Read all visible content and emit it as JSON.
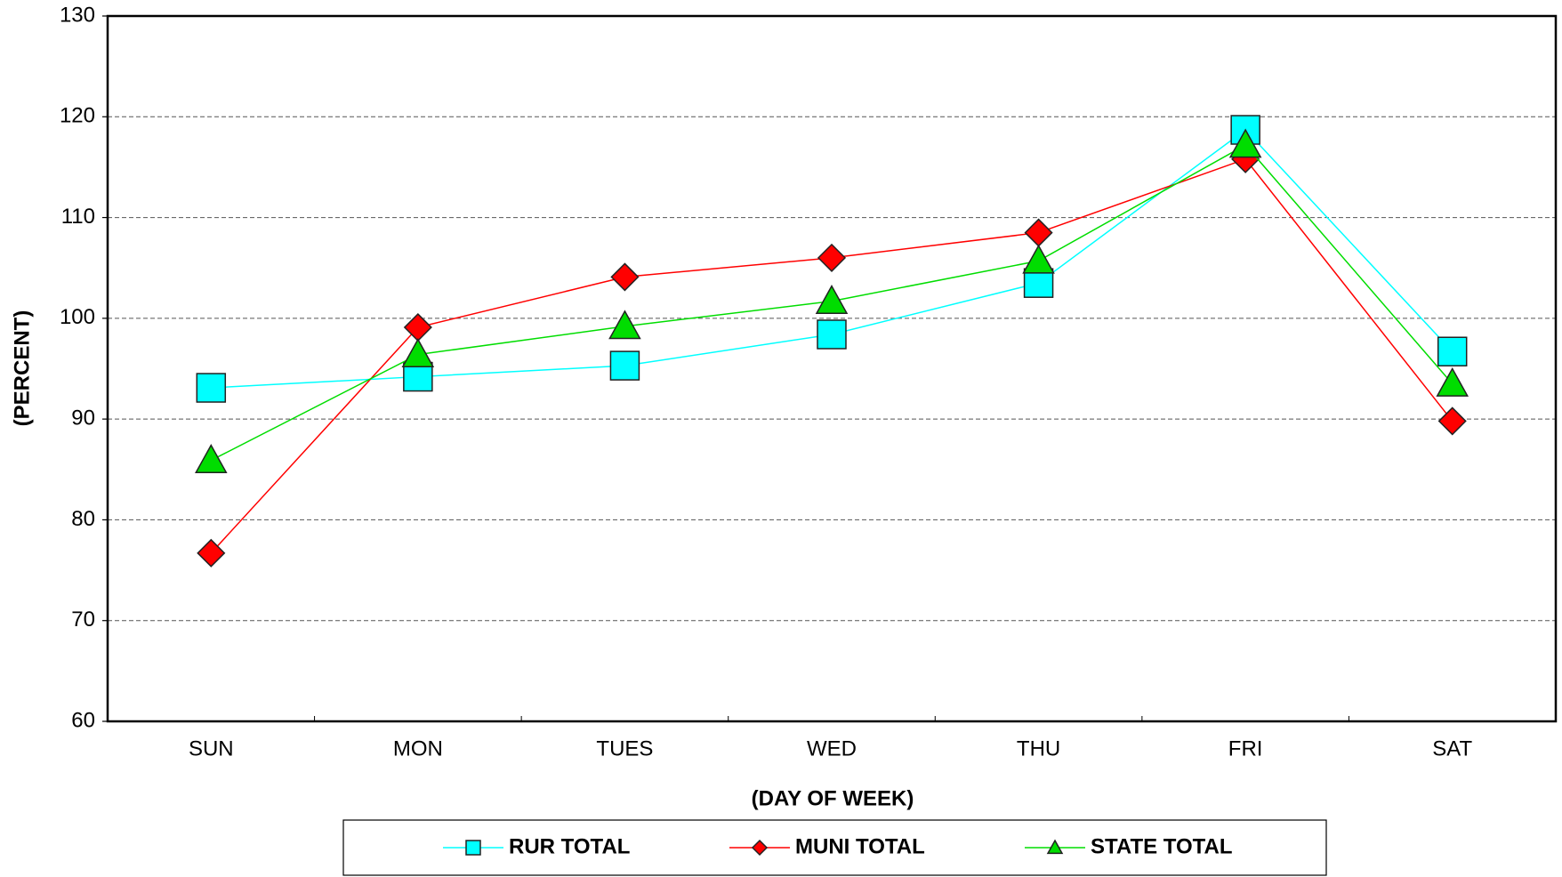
{
  "chart_data": {
    "type": "line",
    "x_label": "(DAY OF WEEK)",
    "y_label": "(PERCENT)",
    "categories": [
      "SUN",
      "MON",
      "TUES",
      "WED",
      "THU",
      "FRI",
      "SAT"
    ],
    "series": [
      {
        "name": "RUR TOTAL",
        "color": "#00ffff",
        "marker": "square",
        "values": [
          93.1,
          94.2,
          95.3,
          98.4,
          103.5,
          118.7,
          96.7
        ]
      },
      {
        "name": "MUNI TOTAL",
        "color": "#ff0000",
        "marker": "diamond",
        "values": [
          76.7,
          99.1,
          104.1,
          106.0,
          108.5,
          115.8,
          89.8
        ]
      },
      {
        "name": "STATE TOTAL",
        "color": "#00dd00",
        "marker": "triangle",
        "values": [
          85.9,
          96.4,
          99.2,
          101.7,
          105.7,
          117.2,
          93.5
        ]
      }
    ],
    "ylim": [
      60,
      130
    ],
    "yticks": [
      60,
      70,
      80,
      90,
      100,
      110,
      120,
      130
    ],
    "grid": true
  }
}
